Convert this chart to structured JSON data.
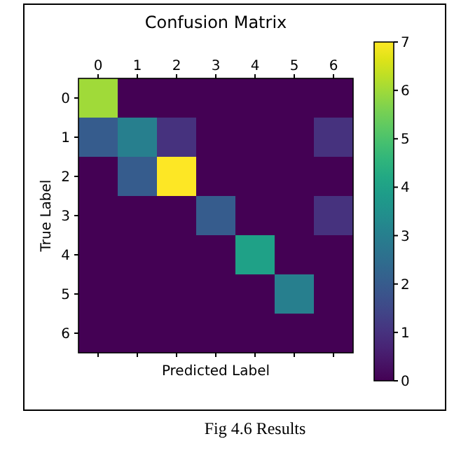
{
  "chart_data": {
    "type": "heatmap",
    "title": "Confusion Matrix",
    "xlabel": "Predicted Label",
    "ylabel": "True Label",
    "categories": [
      "0",
      "1",
      "2",
      "3",
      "4",
      "5",
      "6"
    ],
    "y_categories": [
      "0",
      "1",
      "2",
      "3",
      "4",
      "5",
      "6"
    ],
    "cells": [
      [
        6,
        0,
        0,
        0,
        0,
        0,
        0
      ],
      [
        2,
        3,
        1,
        0,
        0,
        0,
        1
      ],
      [
        0,
        2,
        7,
        0,
        0,
        0,
        0
      ],
      [
        0,
        0,
        0,
        2,
        0,
        0,
        1
      ],
      [
        0,
        0,
        0,
        0,
        4,
        0,
        0
      ],
      [
        0,
        0,
        0,
        0,
        0,
        3,
        0
      ],
      [
        0,
        0,
        0,
        0,
        0,
        0,
        0
      ]
    ],
    "clim": [
      0,
      7
    ],
    "cticks": [
      0,
      1,
      2,
      3,
      4,
      5,
      6,
      7
    ],
    "annotations": [
      "Fig 4.6 Results"
    ]
  }
}
